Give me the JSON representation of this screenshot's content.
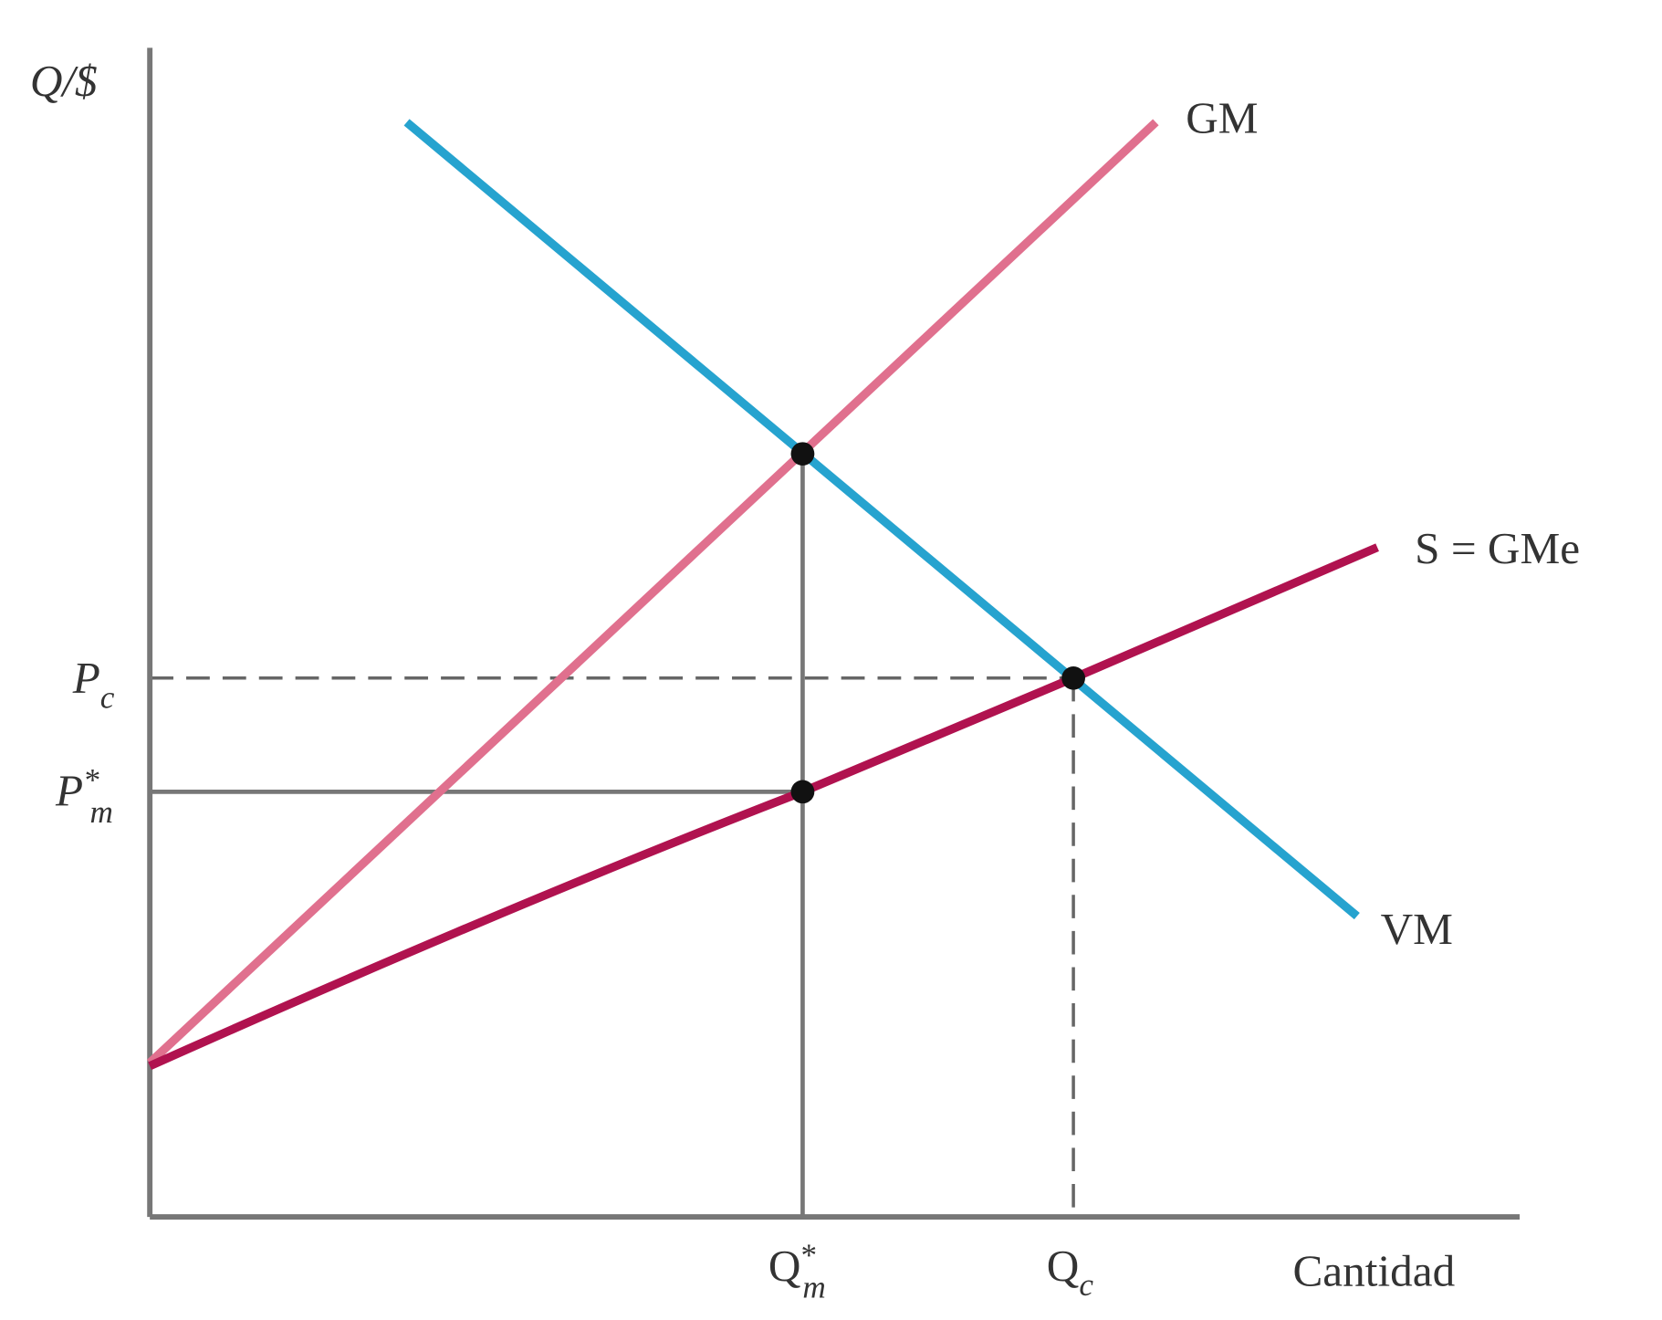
{
  "axes": {
    "y_label": "Q/$",
    "x_label": "Cantidad"
  },
  "curves": {
    "marginal_expenditure": "GM",
    "supply": "S = GMe",
    "marginal_value": "VM"
  },
  "price_labels": {
    "competitive": {
      "main": "P",
      "sub": "c"
    },
    "monopsony": {
      "main": "P",
      "sup": "*",
      "sub": "m"
    }
  },
  "quantity_labels": {
    "monopsony": {
      "main": "Q",
      "sup": "*",
      "sub": "m"
    },
    "competitive": {
      "main": "Q",
      "sub": "c"
    }
  }
}
